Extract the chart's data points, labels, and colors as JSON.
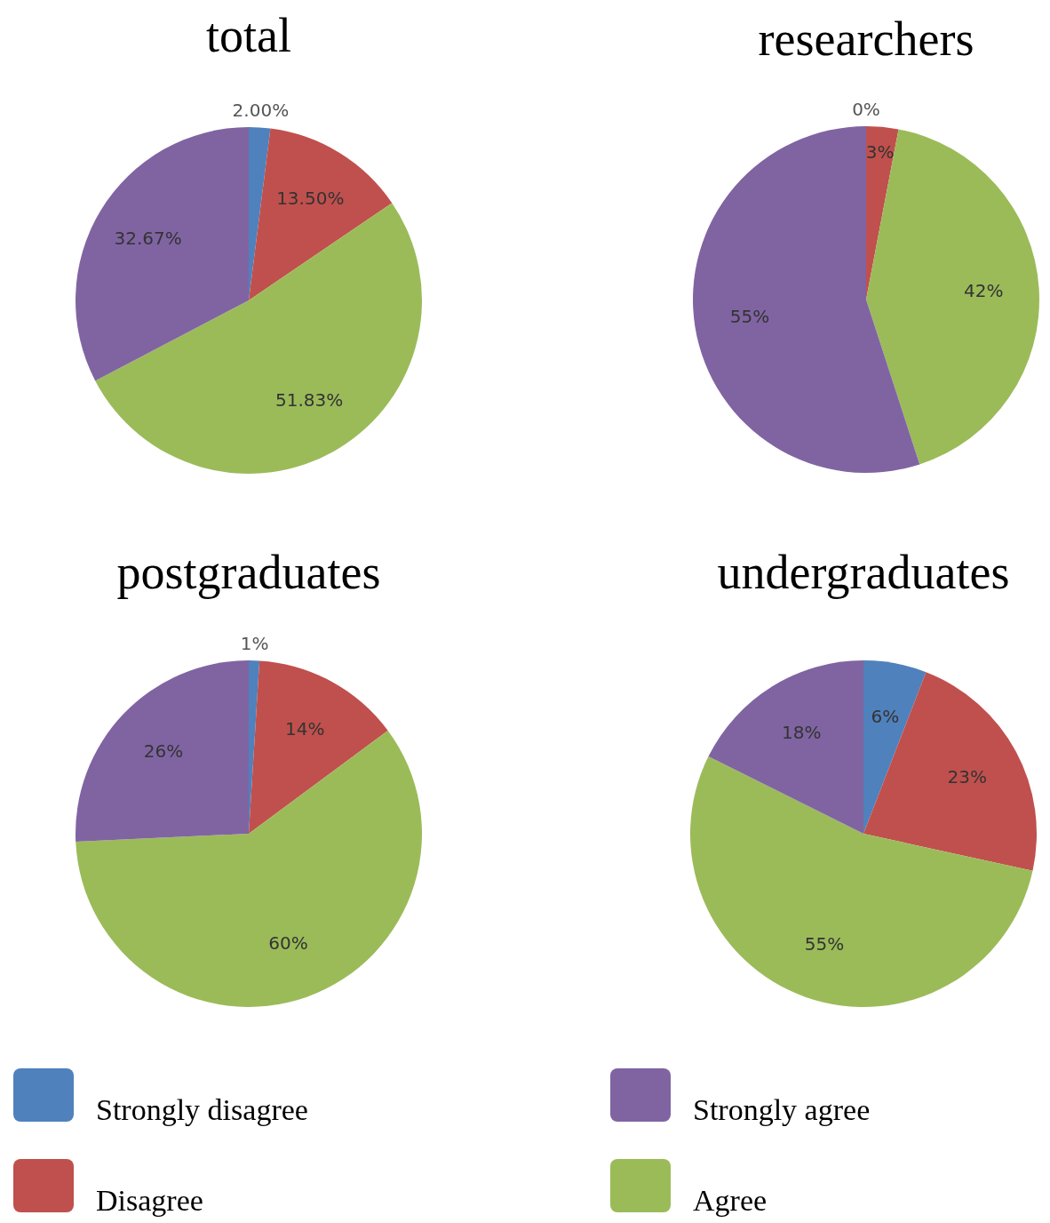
{
  "chart_data": [
    {
      "type": "pie",
      "title": "total",
      "categories": [
        "Strongly disagree",
        "Disagree",
        "Agree",
        "Strongly agree"
      ],
      "values": [
        2.0,
        13.5,
        51.83,
        32.67
      ],
      "value_labels": [
        "2.00%",
        "13.50%",
        "51.83%",
        "32.67%"
      ],
      "colors": [
        "#4f81bd",
        "#c0504d",
        "#9bbb59",
        "#8064a2"
      ],
      "legend": "bottom"
    },
    {
      "type": "pie",
      "title": "researchers",
      "values": [
        0,
        3,
        42,
        55
      ],
      "value_labels": [
        "0%",
        "3%",
        "42%",
        "55%"
      ],
      "colors": [
        "#4f81bd",
        "#c0504d",
        "#9bbb59",
        "#8064a2"
      ]
    },
    {
      "type": "pie",
      "title": "postgraduates",
      "values": [
        1,
        14,
        60,
        26
      ],
      "value_labels": [
        "1%",
        "14%",
        "60%",
        "26%"
      ],
      "colors": [
        "#4f81bd",
        "#c0504d",
        "#9bbb59",
        "#8064a2"
      ]
    },
    {
      "type": "pie",
      "title": "undergraduates",
      "values": [
        6,
        23,
        55,
        18
      ],
      "value_labels": [
        "6%",
        "23%",
        "55%",
        "18%"
      ],
      "colors": [
        "#4f81bd",
        "#c0504d",
        "#9bbb59",
        "#8064a2"
      ]
    }
  ]
}
